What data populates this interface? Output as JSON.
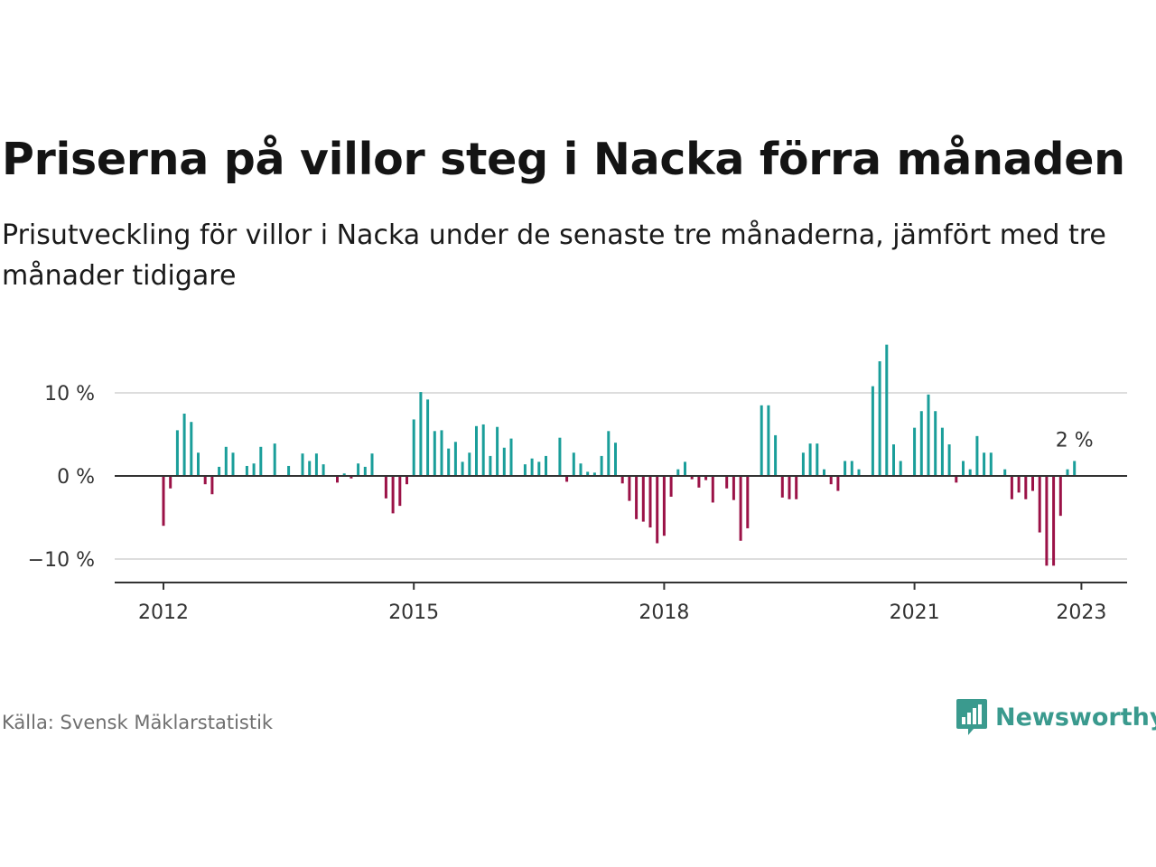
{
  "title": "Priserna på villor steg i Nacka förra månaden",
  "subtitle": "Prisutveckling för villor i Nacka under de senaste tre månaderna, jämfört med tre månader tidigare",
  "source": "Källa: Svensk Mäklarstatistik",
  "brand": "Newsworthy",
  "colors": {
    "positive": "#1a9e9a",
    "negative": "#9b1247",
    "zero_line": "#333333",
    "grid": "#dddddd",
    "brand": "#3a9a8e"
  },
  "chart_data": {
    "type": "bar",
    "ylim": [
      -13,
      16
    ],
    "y_ticks": [
      {
        "value": 10,
        "label": "10 %"
      },
      {
        "value": 0,
        "label": "0 %"
      },
      {
        "value": -10,
        "label": "−10 %"
      }
    ],
    "x_ticks": [
      {
        "label": "2012",
        "index": 0
      },
      {
        "label": "2015",
        "index": 36
      },
      {
        "label": "2018",
        "index": 72
      },
      {
        "label": "2021",
        "index": 108
      },
      {
        "label": "2023",
        "index": 132
      }
    ],
    "x_range": [
      "2012-01",
      "2023-01"
    ],
    "end_label": "2 %",
    "series": [
      {
        "values": [
          -6,
          -1.5,
          5.5,
          7.5,
          6.5,
          2.8,
          -1,
          -2.2,
          1.1,
          3.5,
          2.8,
          0,
          1.2,
          1.5,
          3.5,
          0,
          3.9,
          0,
          1.2,
          0,
          2.7,
          1.8,
          2.7,
          1.4,
          0,
          -0.8,
          0.3,
          -0.3,
          1.5,
          1.1,
          2.7,
          0,
          -2.7,
          -4.5,
          -3.6,
          -1,
          6.8,
          10.1,
          9.2,
          5.4,
          5.5,
          3.3,
          4.1,
          1.7,
          2.8,
          6,
          6.2,
          2.4,
          5.9,
          3.4,
          4.5,
          0,
          1.4,
          2.1,
          1.7,
          2.4,
          0,
          4.6,
          -0.7,
          2.8,
          1.5,
          0.5,
          0.4,
          2.4,
          5.4,
          4,
          -0.9,
          -3,
          -5.2,
          -5.5,
          -6.2,
          -8.1,
          -7.2,
          -2.5,
          0.8,
          1.7,
          -0.4,
          -1.4,
          -0.5,
          -3.2,
          0,
          -1.5,
          -2.9,
          -7.8,
          -6.3,
          0,
          8.5,
          8.5,
          4.9,
          -2.6,
          -2.8,
          -2.8,
          2.8,
          3.9,
          3.9,
          0.8,
          -1,
          -1.8,
          1.8,
          1.8,
          0.8,
          0,
          10.8,
          13.8,
          15.8,
          3.8,
          1.8,
          0,
          5.8,
          7.8,
          9.8,
          7.8,
          5.8,
          3.8,
          -0.8,
          1.8,
          0.8,
          4.8,
          2.8,
          2.8,
          0,
          0.8,
          -2.8,
          -2,
          -2.8,
          -1.8,
          -6.8,
          -10.8,
          -10.8,
          -4.8,
          0.8,
          1.8
        ]
      }
    ]
  }
}
